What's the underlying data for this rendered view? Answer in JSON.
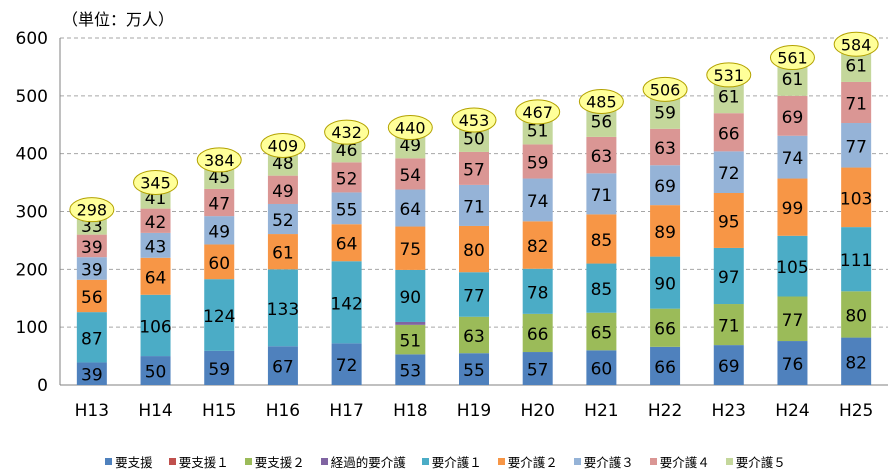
{
  "chart_data": {
    "type": "bar",
    "stacked": true,
    "unit_label": "（単位：万人）",
    "categories": [
      "H13",
      "H14",
      "H15",
      "H16",
      "H17",
      "H18",
      "H19",
      "H20",
      "H21",
      "H22",
      "H23",
      "H24",
      "H25"
    ],
    "ylim": [
      0,
      600
    ],
    "yticks": [
      0,
      100,
      200,
      300,
      400,
      500,
      600
    ],
    "grid": true,
    "legend_position": "bottom",
    "series": [
      {
        "name": "要支援",
        "color": "#4f81bd",
        "values": [
          39,
          50,
          59,
          67,
          72,
          53,
          55,
          57,
          60,
          66,
          69,
          76,
          82
        ]
      },
      {
        "name": "要支援１",
        "color": "#c0504d",
        "values": [
          null,
          null,
          null,
          null,
          null,
          null,
          null,
          null,
          null,
          null,
          null,
          null,
          null
        ]
      },
      {
        "name": "要支援２",
        "color": "#9bbb59",
        "values": [
          null,
          null,
          null,
          null,
          null,
          51,
          63,
          66,
          65,
          66,
          71,
          77,
          80
        ]
      },
      {
        "name": "経過的要介護",
        "color": "#8064a2",
        "values": [
          null,
          null,
          null,
          null,
          null,
          5,
          null,
          null,
          null,
          null,
          null,
          null,
          null
        ]
      },
      {
        "name": "要介護１",
        "color": "#4bacc6",
        "values": [
          87,
          106,
          124,
          133,
          142,
          90,
          77,
          78,
          85,
          90,
          97,
          105,
          111
        ]
      },
      {
        "name": "要介護２",
        "color": "#f79646",
        "values": [
          56,
          64,
          60,
          61,
          64,
          75,
          80,
          82,
          85,
          89,
          95,
          99,
          103
        ]
      },
      {
        "name": "要介護３",
        "color": "#95b3d7",
        "values": [
          39,
          43,
          49,
          52,
          55,
          64,
          71,
          74,
          71,
          69,
          72,
          74,
          77
        ]
      },
      {
        "name": "要介護４",
        "color": "#da9694",
        "values": [
          39,
          42,
          47,
          49,
          52,
          54,
          57,
          59,
          63,
          63,
          66,
          69,
          71
        ]
      },
      {
        "name": "要介護５",
        "color": "#c4d79b",
        "values": [
          33,
          41,
          45,
          48,
          46,
          49,
          50,
          51,
          56,
          59,
          61,
          61,
          61
        ]
      }
    ],
    "totals": [
      298,
      345,
      384,
      409,
      432,
      440,
      453,
      467,
      485,
      506,
      531,
      561,
      584
    ]
  }
}
